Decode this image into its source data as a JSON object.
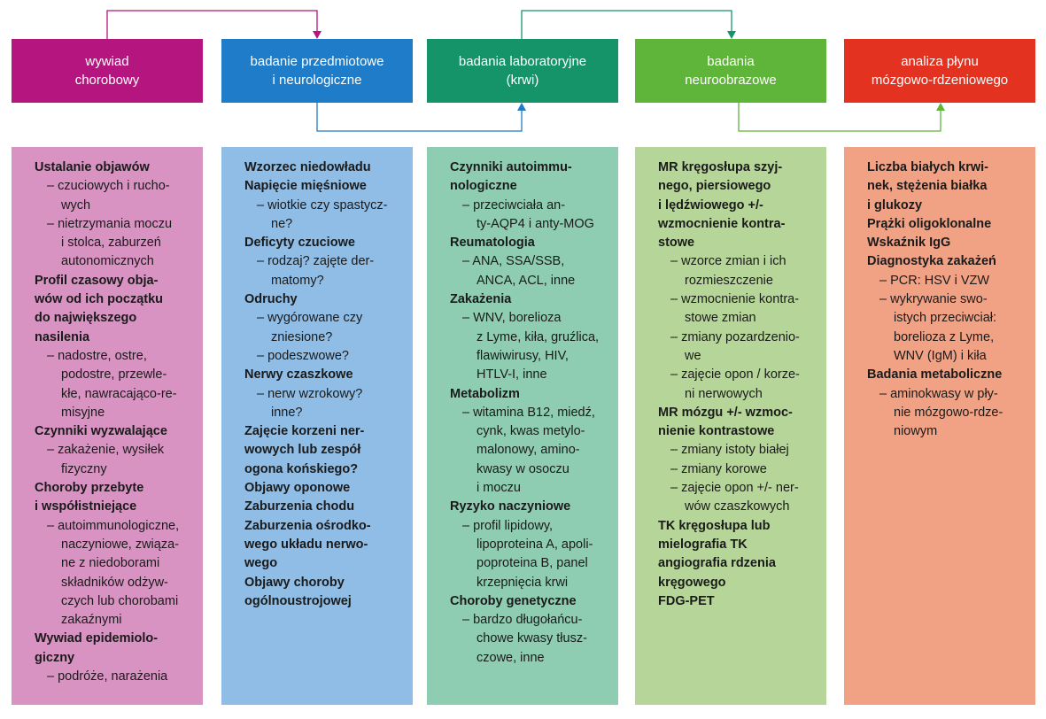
{
  "colors": {
    "header": [
      "#b5157e",
      "#1e7cc8",
      "#15946a",
      "#5fb43a",
      "#e3321f"
    ],
    "body": [
      "#d893c2",
      "#8fbde6",
      "#8fcdb3",
      "#b6d699",
      "#f1a285"
    ],
    "connector_purple": "#b5157e",
    "connector_teal": "#15946a",
    "connector_blue": "#1e7cc8",
    "connector_green": "#5fb43a"
  },
  "columns": [
    {
      "header": [
        "wywiad",
        "chorobowy"
      ],
      "lines": [
        {
          "t": "Ustalanie objawów",
          "k": "b"
        },
        {
          "t": "– czuciowych i rucho-",
          "k": "i"
        },
        {
          "t": "wych",
          "k": "c"
        },
        {
          "t": "– nietrzymania moczu",
          "k": "i"
        },
        {
          "t": "i stolca, zaburzeń",
          "k": "c"
        },
        {
          "t": "autonomicznych",
          "k": "c"
        },
        {
          "t": "Profil czasowy obja-",
          "k": "b"
        },
        {
          "t": "wów od ich początku",
          "k": "b"
        },
        {
          "t": "do największego",
          "k": "b"
        },
        {
          "t": "nasilenia",
          "k": "b"
        },
        {
          "t": "– nadostre, ostre,",
          "k": "i"
        },
        {
          "t": "podostre, przewle-",
          "k": "c"
        },
        {
          "t": "kłe, nawracająco-re-",
          "k": "c"
        },
        {
          "t": "misyjne",
          "k": "c"
        },
        {
          "t": "Czynniki wyzwalające",
          "k": "b"
        },
        {
          "t": "– zakażenie, wysiłek",
          "k": "i"
        },
        {
          "t": "fizyczny",
          "k": "c"
        },
        {
          "t": "Choroby przebyte",
          "k": "b"
        },
        {
          "t": "i współistniejące",
          "k": "b"
        },
        {
          "t": "– autoimmunologiczne,",
          "k": "i"
        },
        {
          "t": "naczyniowe, związa-",
          "k": "c"
        },
        {
          "t": "ne z niedoborami",
          "k": "c"
        },
        {
          "t": "składników odżyw-",
          "k": "c"
        },
        {
          "t": "czych lub chorobami",
          "k": "c"
        },
        {
          "t": "zakaźnymi",
          "k": "c"
        },
        {
          "t": "Wywiad epidemiolo-",
          "k": "b"
        },
        {
          "t": "giczny",
          "k": "b"
        },
        {
          "t": "– podróże, narażenia",
          "k": "i"
        }
      ]
    },
    {
      "header": [
        "badanie przedmiotowe",
        "i neurologiczne"
      ],
      "lines": [
        {
          "t": "Wzorzec niedowładu",
          "k": "b"
        },
        {
          "t": "Napięcie mięśniowe",
          "k": "b"
        },
        {
          "t": "– wiotkie czy spastycz-",
          "k": "i"
        },
        {
          "t": "ne?",
          "k": "c"
        },
        {
          "t": "Deficyty czuciowe",
          "k": "b"
        },
        {
          "t": "– rodzaj? zajęte der-",
          "k": "i"
        },
        {
          "t": "matomy?",
          "k": "c"
        },
        {
          "t": "Odruchy",
          "k": "b"
        },
        {
          "t": "– wygórowane czy",
          "k": "i"
        },
        {
          "t": "zniesione?",
          "k": "c"
        },
        {
          "t": "– podeszwowe?",
          "k": "i"
        },
        {
          "t": "Nerwy czaszkowe",
          "k": "b"
        },
        {
          "t": "– nerw wzrokowy?",
          "k": "i"
        },
        {
          "t": "inne?",
          "k": "c"
        },
        {
          "t": "Zajęcie korzeni ner-",
          "k": "b"
        },
        {
          "t": "wowych lub zespół",
          "k": "b"
        },
        {
          "t": "ogona końskiego?",
          "k": "b"
        },
        {
          "t": "Objawy oponowe",
          "k": "b"
        },
        {
          "t": "Zaburzenia chodu",
          "k": "b"
        },
        {
          "t": "Zaburzenia ośrodko-",
          "k": "b"
        },
        {
          "t": "wego układu nerwo-",
          "k": "b"
        },
        {
          "t": "wego",
          "k": "b"
        },
        {
          "t": "Objawy choroby",
          "k": "b"
        },
        {
          "t": "ogólnoustrojowej",
          "k": "b"
        }
      ]
    },
    {
      "header": [
        "badania laboratoryjne",
        "(krwi)"
      ],
      "lines": [
        {
          "t": "Czynniki autoimmu-",
          "k": "b"
        },
        {
          "t": "nologiczne",
          "k": "b"
        },
        {
          "t": "– przeciwciała an-",
          "k": "i"
        },
        {
          "t": "ty-AQP4 i anty-MOG",
          "k": "c"
        },
        {
          "t": "Reumatologia",
          "k": "b"
        },
        {
          "t": "– ANA, SSA/SSB,",
          "k": "i"
        },
        {
          "t": "ANCA, ACL, inne",
          "k": "c"
        },
        {
          "t": "Zakażenia",
          "k": "b"
        },
        {
          "t": "– WNV, borelioza",
          "k": "i"
        },
        {
          "t": "z Lyme, kiła, gruźlica,",
          "k": "c"
        },
        {
          "t": "flawiwirusy, HIV,",
          "k": "c"
        },
        {
          "t": "HTLV-I, inne",
          "k": "c"
        },
        {
          "t": "Metabolizm",
          "k": "b"
        },
        {
          "t": "– witamina B12, miedź,",
          "k": "i"
        },
        {
          "t": "cynk, kwas metylo-",
          "k": "c"
        },
        {
          "t": "malonowy, amino-",
          "k": "c"
        },
        {
          "t": "kwasy w osoczu",
          "k": "c"
        },
        {
          "t": "i moczu",
          "k": "c"
        },
        {
          "t": "Ryzyko naczyniowe",
          "k": "b"
        },
        {
          "t": "– profil lipidowy,",
          "k": "i"
        },
        {
          "t": "lipoproteina A, apoli-",
          "k": "c"
        },
        {
          "t": "poproteina B, panel",
          "k": "c"
        },
        {
          "t": "krzepnięcia krwi",
          "k": "c"
        },
        {
          "t": "Choroby genetyczne",
          "k": "b"
        },
        {
          "t": "– bardzo długołańcu-",
          "k": "i"
        },
        {
          "t": "chowe kwasy tłusz-",
          "k": "c"
        },
        {
          "t": "czowe, inne",
          "k": "c"
        }
      ]
    },
    {
      "header": [
        "badania",
        "neuroobrazowe"
      ],
      "lines": [
        {
          "t": "MR kręgosłupa szyj-",
          "k": "b"
        },
        {
          "t": "nego, piersiowego",
          "k": "b"
        },
        {
          "t": "i lędźwiowego +/-",
          "k": "b"
        },
        {
          "t": "wzmocnienie kontra-",
          "k": "b"
        },
        {
          "t": "stowe",
          "k": "b"
        },
        {
          "t": "– wzorce zmian i ich",
          "k": "i"
        },
        {
          "t": "rozmieszczenie",
          "k": "c"
        },
        {
          "t": "– wzmocnienie kontra-",
          "k": "i"
        },
        {
          "t": "stowe zmian",
          "k": "c"
        },
        {
          "t": "– zmiany pozardzenio-",
          "k": "i"
        },
        {
          "t": "we",
          "k": "c"
        },
        {
          "t": "– zajęcie opon / korze-",
          "k": "i"
        },
        {
          "t": "ni nerwowych",
          "k": "c"
        },
        {
          "t": "MR mózgu +/- wzmoc-",
          "k": "b"
        },
        {
          "t": "nienie kontrastowe",
          "k": "b"
        },
        {
          "t": "– zmiany istoty białej",
          "k": "i"
        },
        {
          "t": "– zmiany korowe",
          "k": "i"
        },
        {
          "t": "– zajęcie opon +/- ner-",
          "k": "i"
        },
        {
          "t": "wów czaszkowych",
          "k": "c"
        },
        {
          "t": "TK kręgosłupa lub",
          "k": "b"
        },
        {
          "t": "mielografia TK",
          "k": "b"
        },
        {
          "t": "angiografia rdzenia",
          "k": "b"
        },
        {
          "t": "kręgowego",
          "k": "b"
        },
        {
          "t": "FDG-PET",
          "k": "b"
        }
      ]
    },
    {
      "header": [
        "analiza płynu",
        "mózgowo-rdzeniowego"
      ],
      "lines": [
        {
          "t": "Liczba białych krwi-",
          "k": "b"
        },
        {
          "t": "nek, stężenia białka",
          "k": "b"
        },
        {
          "t": "i glukozy",
          "k": "b"
        },
        {
          "t": "Prążki oligoklonalne",
          "k": "b"
        },
        {
          "t": "Wskaźnik IgG",
          "k": "b"
        },
        {
          "t": "Diagnostyka zakażeń",
          "k": "b"
        },
        {
          "t": "– PCR: HSV i VZW",
          "k": "i"
        },
        {
          "t": "– wykrywanie swo-",
          "k": "i"
        },
        {
          "t": "istych przeciwciał:",
          "k": "c"
        },
        {
          "t": "borelioza z Lyme,",
          "k": "c"
        },
        {
          "t": "WNV (IgM) i kiła",
          "k": "c"
        },
        {
          "t": "Badania metaboliczne",
          "k": "b"
        },
        {
          "t": "– aminokwasy w pły-",
          "k": "i"
        },
        {
          "t": "nie mózgowo-rdze-",
          "k": "c"
        },
        {
          "t": "niowym",
          "k": "c"
        }
      ]
    }
  ]
}
